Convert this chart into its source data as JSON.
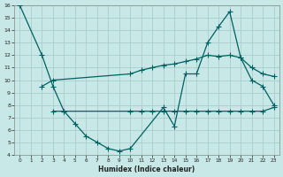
{
  "xlabel": "Humidex (Indice chaleur)",
  "background_color": "#c8e8e8",
  "grid_color": "#aacccc",
  "line_color": "#006060",
  "xlim": [
    -0.5,
    23.5
  ],
  "ylim": [
    4,
    16
  ],
  "xticks": [
    0,
    1,
    2,
    3,
    4,
    5,
    6,
    7,
    8,
    9,
    10,
    11,
    12,
    13,
    14,
    15,
    16,
    17,
    18,
    19,
    20,
    21,
    22,
    23
  ],
  "yticks": [
    4,
    5,
    6,
    7,
    8,
    9,
    10,
    11,
    12,
    13,
    14,
    15,
    16
  ],
  "line1_x": [
    0,
    2,
    3,
    4,
    5,
    6,
    7,
    8,
    9,
    10,
    13,
    14,
    15,
    16,
    17,
    18,
    19,
    20,
    21,
    22,
    23
  ],
  "line1_y": [
    16,
    12,
    9.5,
    7.5,
    6.5,
    5.5,
    5.0,
    4.5,
    4.3,
    4.5,
    7.8,
    6.3,
    10.5,
    10.5,
    13.0,
    14.3,
    15.5,
    11.8,
    10.0,
    9.5,
    8.0
  ],
  "line2_x": [
    2,
    3,
    10,
    11,
    12,
    13,
    14,
    15,
    16,
    17,
    18,
    19,
    20,
    21,
    22,
    23
  ],
  "line2_y": [
    9.5,
    10.0,
    10.5,
    10.8,
    11.0,
    11.2,
    11.3,
    11.5,
    11.7,
    12.0,
    11.9,
    12.0,
    11.8,
    11.0,
    10.5,
    10.3
  ],
  "line3_x": [
    3,
    4,
    10,
    11,
    12,
    13,
    14,
    15,
    16,
    17,
    18,
    19,
    20,
    21,
    22,
    23
  ],
  "line3_y": [
    7.5,
    7.5,
    7.5,
    7.5,
    7.5,
    7.5,
    7.5,
    7.5,
    7.5,
    7.5,
    7.5,
    7.5,
    7.5,
    7.5,
    7.5,
    7.8
  ]
}
